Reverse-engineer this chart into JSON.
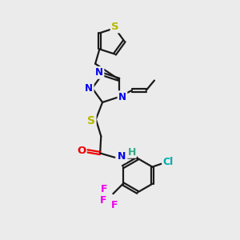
{
  "bg_color": "#ebebeb",
  "bond_color": "#1a1a1a",
  "bond_width": 1.6,
  "atom_colors": {
    "N": "#0000ee",
    "S": "#b8b800",
    "O": "#ee0000",
    "Cl": "#00aaaa",
    "F": "#ee00ee",
    "H_color": "#33aa88",
    "C": "#1a1a1a"
  },
  "font_size": 8.5
}
